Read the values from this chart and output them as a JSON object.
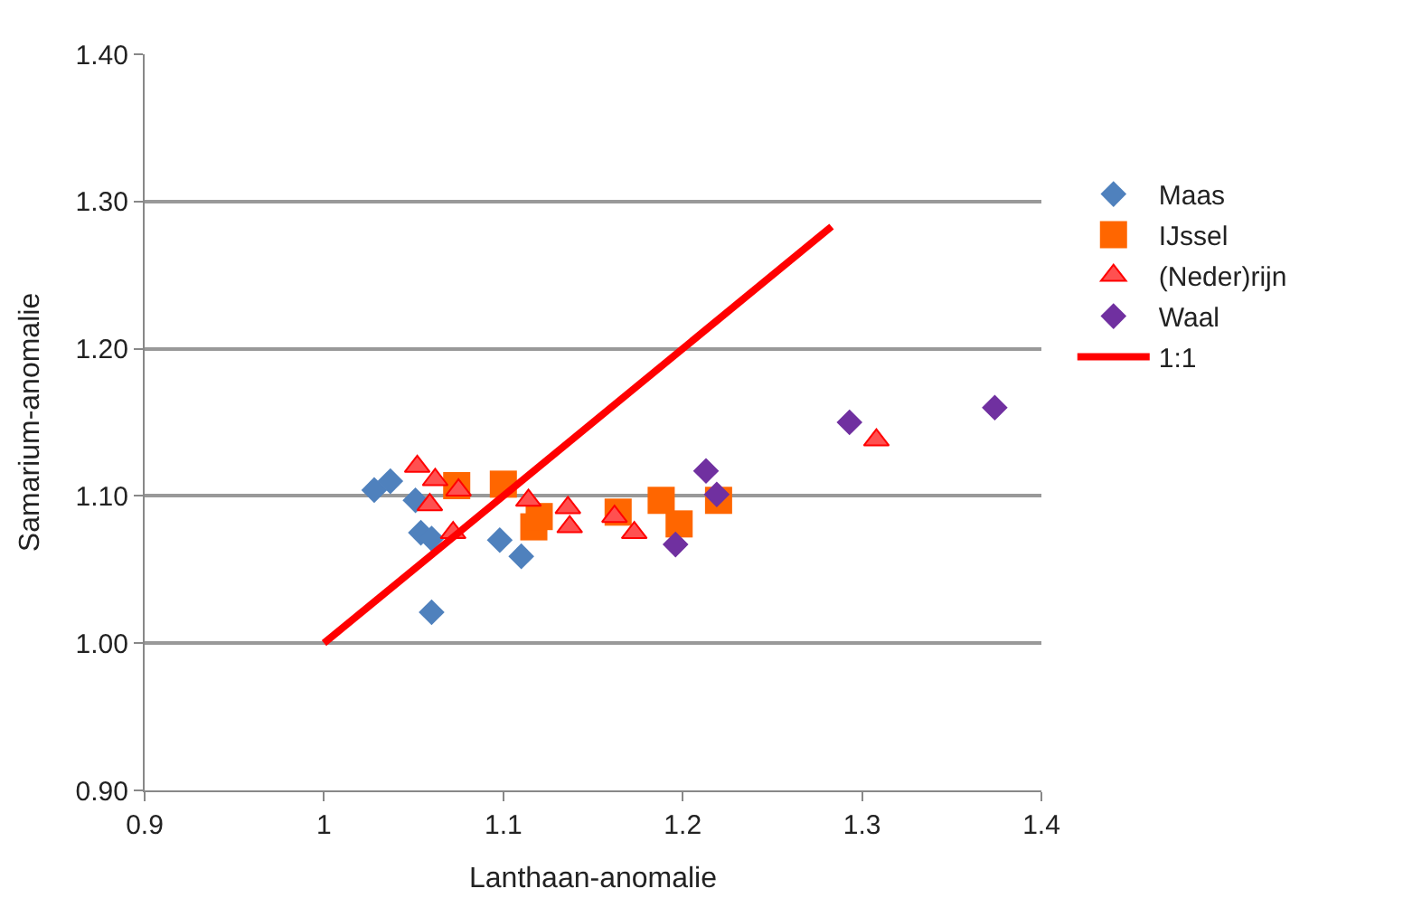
{
  "chart_data": {
    "type": "scatter",
    "xlabel": "Lanthaan-anomalie",
    "ylabel": "Samarium-anomalie",
    "xlim": [
      0.9,
      1.4
    ],
    "xticks": [
      0.9,
      1,
      1.1,
      1.2,
      1.3,
      1.4
    ],
    "ylim": [
      0.9,
      1.4
    ],
    "yticks": [
      {
        "value": 0.9,
        "label": "0.90"
      },
      {
        "value": 1.0,
        "label": "1.00"
      },
      {
        "value": 1.1,
        "label": "1.10"
      },
      {
        "value": 1.2,
        "label": "1.20"
      },
      {
        "value": 1.3,
        "label": "1.30"
      },
      {
        "value": 1.4,
        "label": "1.40"
      }
    ],
    "grid": "y",
    "legend": "right",
    "series": [
      {
        "name": "Maas",
        "color": "#4f81bd",
        "marker": "diamond",
        "x": [
          1.028,
          1.037,
          1.051,
          1.054,
          1.06,
          1.06,
          1.098,
          1.11
        ],
        "values": [
          1.104,
          1.11,
          1.097,
          1.075,
          1.071,
          1.021,
          1.07,
          1.059
        ]
      },
      {
        "name": "IJssel",
        "color": "#ff6600",
        "marker": "square",
        "x": [
          1.074,
          1.1,
          1.117,
          1.12,
          1.164,
          1.188,
          1.198,
          1.22
        ],
        "values": [
          1.107,
          1.108,
          1.079,
          1.086,
          1.089,
          1.097,
          1.081,
          1.097
        ]
      },
      {
        "name": "(Neder)rijn",
        "color": "#ff5050",
        "marker": "triangle",
        "x": [
          1.052,
          1.062,
          1.075,
          1.059,
          1.072,
          1.114,
          1.136,
          1.137,
          1.162,
          1.173,
          1.308
        ],
        "values": [
          1.12,
          1.111,
          1.104,
          1.094,
          1.075,
          1.097,
          1.092,
          1.079,
          1.086,
          1.075,
          1.138
        ]
      },
      {
        "name": "Waal",
        "color": "#7030a0",
        "marker": "diamond",
        "x": [
          1.213,
          1.219,
          1.196,
          1.293,
          1.374
        ],
        "values": [
          1.117,
          1.101,
          1.067,
          1.15,
          1.16
        ]
      },
      {
        "name": "1:1",
        "type": "line",
        "color": "#ff0000",
        "marker": "none",
        "x": [
          1.0,
          1.283
        ],
        "values": [
          1.0,
          1.283
        ]
      }
    ]
  }
}
